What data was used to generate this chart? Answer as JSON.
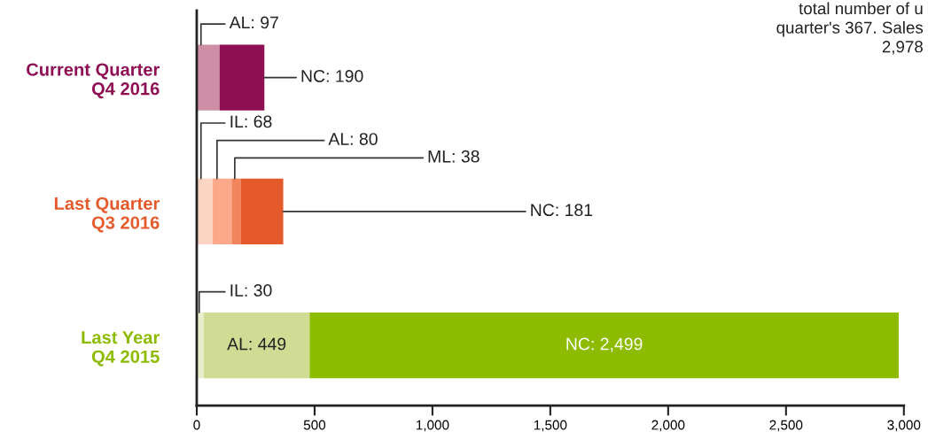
{
  "chart_data": {
    "type": "bar",
    "orientation": "horizontal",
    "stacked": true,
    "legend": false,
    "categories": [
      "Current Quarter\nQ4 2016",
      "Last Quarter\nQ3 2016",
      "Last Year\nQ4 2015"
    ],
    "series": [
      {
        "colors": [
          null,
          "#fdd5c5",
          "#e8eec9"
        ],
        "values": [
          null,
          68,
          30
        ],
        "value_labels": [
          null,
          "IL: 68",
          "IL: 30"
        ]
      },
      {
        "colors": [
          "#cd8ea6",
          "#fba98a",
          "#d0dc94"
        ],
        "values": [
          97,
          80,
          449
        ],
        "value_labels": [
          "AL: 97",
          "AL: 80",
          "AL: 449"
        ]
      },
      {
        "colors": [
          null,
          "#f2845c",
          null
        ],
        "values": [
          null,
          38,
          null
        ],
        "value_labels": [
          null,
          "ML: 38",
          null
        ]
      },
      {
        "colors": [
          "#8e0f53",
          "#e55a2b",
          "#8cbb00"
        ],
        "values": [
          190,
          181,
          2499
        ],
        "value_labels": [
          "NC: 190",
          "NC: 181",
          "NC: 2,499"
        ]
      }
    ],
    "xlim": [
      0,
      3000
    ],
    "xticks": [
      0,
      500,
      {
        "value": 1000,
        "label": "1,000"
      },
      {
        "value": 1500,
        "label": "1,500"
      },
      {
        "value": 2000,
        "label": "2,000"
      },
      {
        "value": 2500,
        "label": "2,500"
      },
      {
        "value": 3000,
        "label": "3,000"
      }
    ],
    "grid": false,
    "annotations": [
      "total number of u\nquarter's 367. Sales\n2,978"
    ]
  }
}
